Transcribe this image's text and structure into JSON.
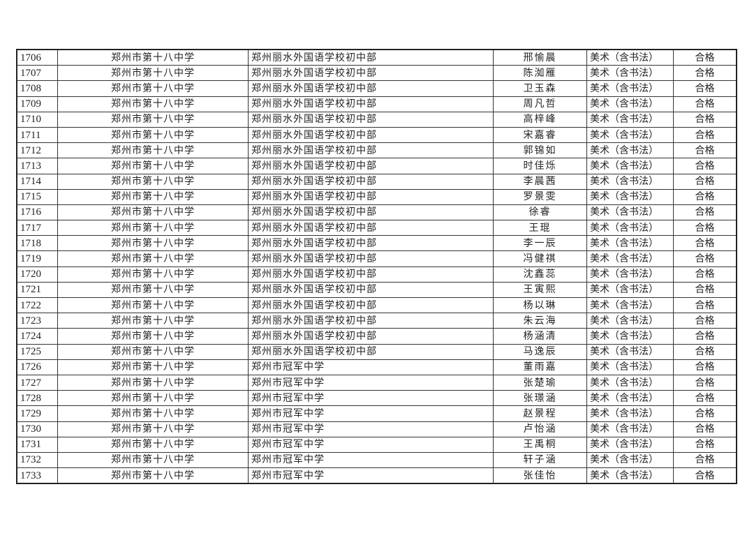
{
  "table": {
    "rows": [
      [
        "1706",
        "郑州市第十八中学",
        "郑州丽水外国语学校初中部",
        "邢愉晨",
        "美术（含书法）",
        "合格"
      ],
      [
        "1707",
        "郑州市第十八中学",
        "郑州丽水外国语学校初中部",
        "陈洳雁",
        "美术（含书法）",
        "合格"
      ],
      [
        "1708",
        "郑州市第十八中学",
        "郑州丽水外国语学校初中部",
        "卫玉森",
        "美术（含书法）",
        "合格"
      ],
      [
        "1709",
        "郑州市第十八中学",
        "郑州丽水外国语学校初中部",
        "周凡哲",
        "美术（含书法）",
        "合格"
      ],
      [
        "1710",
        "郑州市第十八中学",
        "郑州丽水外国语学校初中部",
        "高梓峰",
        "美术（含书法）",
        "合格"
      ],
      [
        "1711",
        "郑州市第十八中学",
        "郑州丽水外国语学校初中部",
        "宋嘉睿",
        "美术（含书法）",
        "合格"
      ],
      [
        "1712",
        "郑州市第十八中学",
        "郑州丽水外国语学校初中部",
        "郭锦如",
        "美术（含书法）",
        "合格"
      ],
      [
        "1713",
        "郑州市第十八中学",
        "郑州丽水外国语学校初中部",
        "时佳烁",
        "美术（含书法）",
        "合格"
      ],
      [
        "1714",
        "郑州市第十八中学",
        "郑州丽水外国语学校初中部",
        "李晨茜",
        "美术（含书法）",
        "合格"
      ],
      [
        "1715",
        "郑州市第十八中学",
        "郑州丽水外国语学校初中部",
        "罗景雯",
        "美术（含书法）",
        "合格"
      ],
      [
        "1716",
        "郑州市第十八中学",
        "郑州丽水外国语学校初中部",
        "徐睿",
        "美术（含书法）",
        "合格"
      ],
      [
        "1717",
        "郑州市第十八中学",
        "郑州丽水外国语学校初中部",
        "王琨",
        "美术（含书法）",
        "合格"
      ],
      [
        "1718",
        "郑州市第十八中学",
        "郑州丽水外国语学校初中部",
        "李一辰",
        "美术（含书法）",
        "合格"
      ],
      [
        "1719",
        "郑州市第十八中学",
        "郑州丽水外国语学校初中部",
        "冯健祺",
        "美术（含书法）",
        "合格"
      ],
      [
        "1720",
        "郑州市第十八中学",
        "郑州丽水外国语学校初中部",
        "沈鑫蕊",
        "美术（含书法）",
        "合格"
      ],
      [
        "1721",
        "郑州市第十八中学",
        "郑州丽水外国语学校初中部",
        "王寅熙",
        "美术（含书法）",
        "合格"
      ],
      [
        "1722",
        "郑州市第十八中学",
        "郑州丽水外国语学校初中部",
        "杨以琳",
        "美术（含书法）",
        "合格"
      ],
      [
        "1723",
        "郑州市第十八中学",
        "郑州丽水外国语学校初中部",
        "朱云海",
        "美术（含书法）",
        "合格"
      ],
      [
        "1724",
        "郑州市第十八中学",
        "郑州丽水外国语学校初中部",
        "杨涵清",
        "美术（含书法）",
        "合格"
      ],
      [
        "1725",
        "郑州市第十八中学",
        "郑州丽水外国语学校初中部",
        "马逸辰",
        "美术（含书法）",
        "合格"
      ],
      [
        "1726",
        "郑州市第十八中学",
        "郑州市冠军中学",
        "董雨嘉",
        "美术（含书法）",
        "合格"
      ],
      [
        "1727",
        "郑州市第十八中学",
        "郑州市冠军中学",
        "张楚瑜",
        "美术（含书法）",
        "合格"
      ],
      [
        "1728",
        "郑州市第十八中学",
        "郑州市冠军中学",
        "张璟涵",
        "美术（含书法）",
        "合格"
      ],
      [
        "1729",
        "郑州市第十八中学",
        "郑州市冠军中学",
        "赵景程",
        "美术（含书法）",
        "合格"
      ],
      [
        "1730",
        "郑州市第十八中学",
        "郑州市冠军中学",
        "卢怡涵",
        "美术（含书法）",
        "合格"
      ],
      [
        "1731",
        "郑州市第十八中学",
        "郑州市冠军中学",
        "王禹桐",
        "美术（含书法）",
        "合格"
      ],
      [
        "1732",
        "郑州市第十八中学",
        "郑州市冠军中学",
        "轩子涵",
        "美术（含书法）",
        "合格"
      ],
      [
        "1733",
        "郑州市第十八中学",
        "郑州市冠军中学",
        "张佳怡",
        "美术（含书法）",
        "合格"
      ]
    ]
  }
}
